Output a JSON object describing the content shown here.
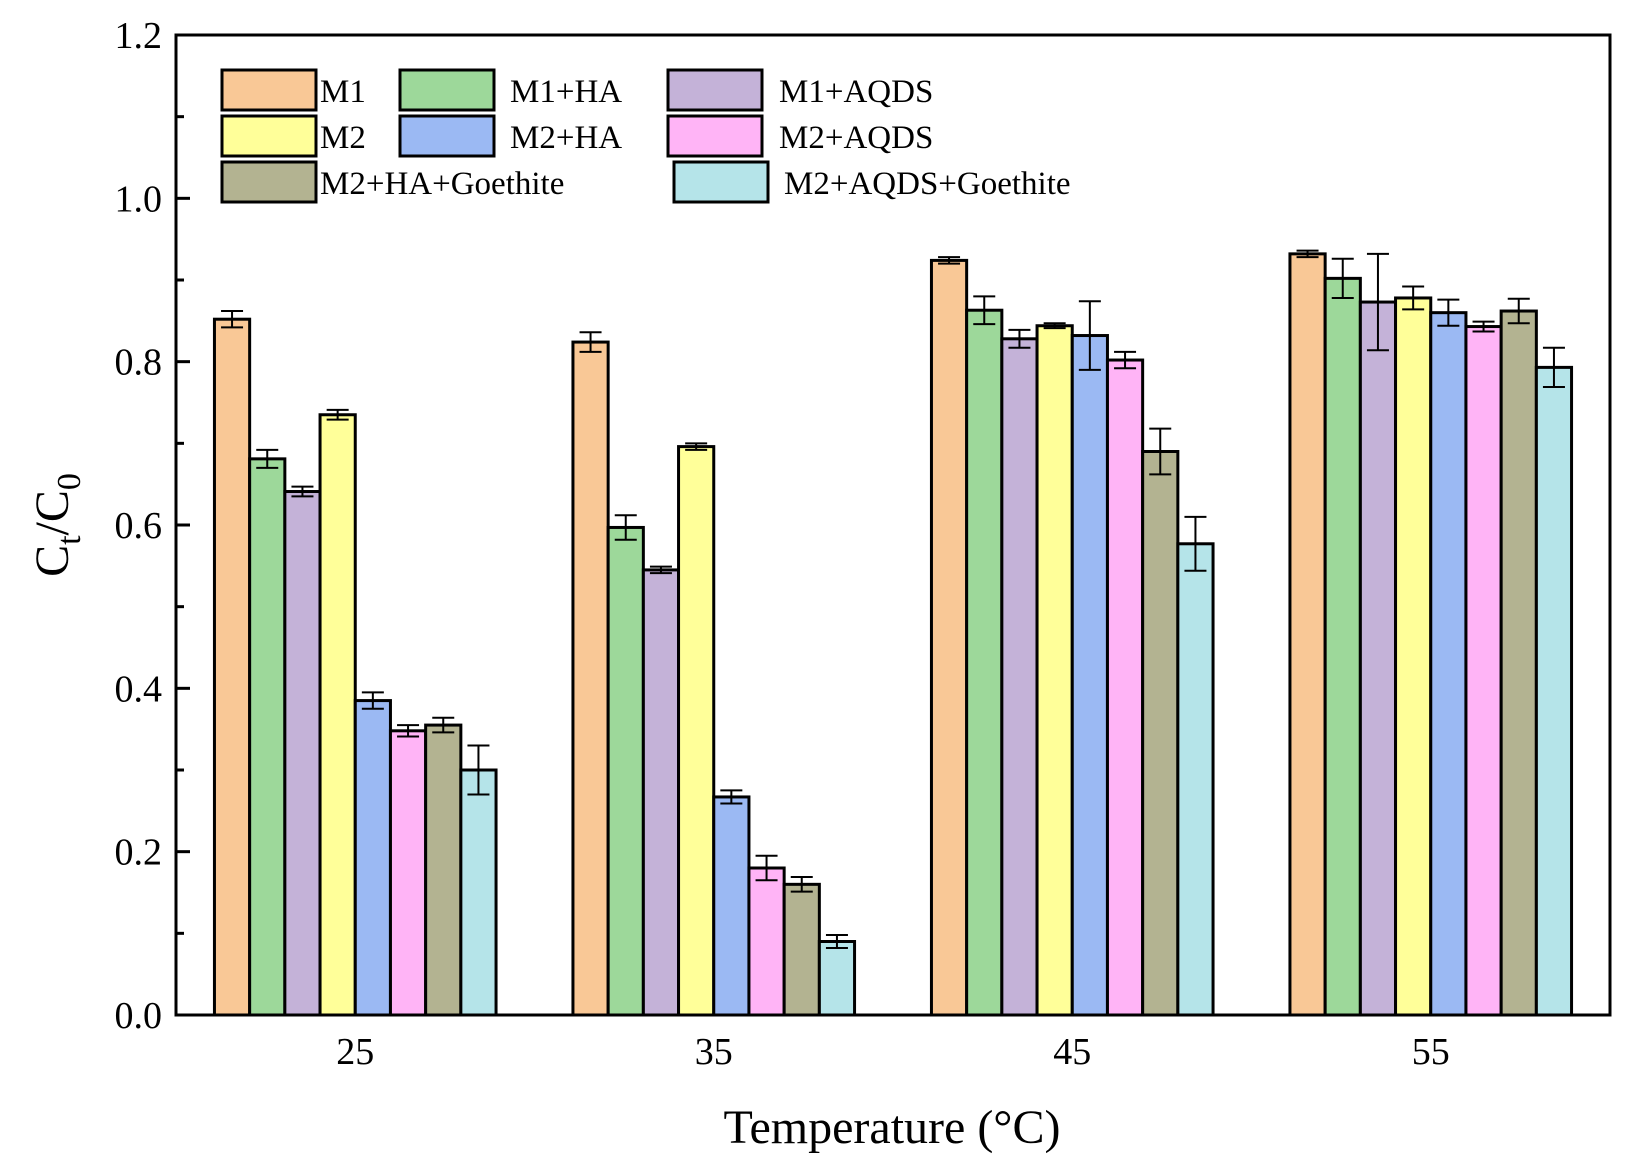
{
  "chart_data": {
    "type": "bar",
    "xlabel": "Temperature (°C)",
    "ylabel_main": "C",
    "ylabel_sub1": "t",
    "ylabel_sep": "/C",
    "ylabel_sub2": "0",
    "ylim": [
      0,
      1.2
    ],
    "yticks": [
      "0.0",
      "0.2",
      "0.4",
      "0.6",
      "0.8",
      "1.0",
      "1.2"
    ],
    "categories": [
      "25",
      "35",
      "45",
      "55"
    ],
    "legend_position": "top-left",
    "series": [
      {
        "name": "M1",
        "color": "#f9c896",
        "values": [
          0.852,
          0.824,
          0.924,
          0.932
        ],
        "errors": [
          0.01,
          0.012,
          0.004,
          0.004
        ]
      },
      {
        "name": "M1+HA",
        "color": "#9dd89a",
        "values": [
          0.681,
          0.597,
          0.863,
          0.902
        ],
        "errors": [
          0.011,
          0.015,
          0.017,
          0.024
        ]
      },
      {
        "name": "M1+AQDS",
        "color": "#c4b2d8",
        "values": [
          0.641,
          0.545,
          0.828,
          0.873
        ],
        "errors": [
          0.006,
          0.004,
          0.011,
          0.059
        ]
      },
      {
        "name": "M2",
        "color": "#ffff99",
        "values": [
          0.735,
          0.696,
          0.844,
          0.878
        ],
        "errors": [
          0.006,
          0.004,
          0.003,
          0.014
        ]
      },
      {
        "name": "M2+HA",
        "color": "#9bb9f3",
        "values": [
          0.385,
          0.267,
          0.832,
          0.86
        ],
        "errors": [
          0.01,
          0.008,
          0.042,
          0.016
        ]
      },
      {
        "name": "M2+AQDS",
        "color": "#ffb4f6",
        "values": [
          0.348,
          0.18,
          0.802,
          0.843
        ],
        "errors": [
          0.007,
          0.015,
          0.01,
          0.006
        ]
      },
      {
        "name": "M2+HA+Goethite",
        "color": "#b3b391",
        "values": [
          0.355,
          0.16,
          0.69,
          0.862
        ],
        "errors": [
          0.009,
          0.009,
          0.028,
          0.015
        ]
      },
      {
        "name": "M2+AQDS+Goethite",
        "color": "#b5e4e9",
        "values": [
          0.3,
          0.09,
          0.577,
          0.793
        ],
        "errors": [
          0.03,
          0.008,
          0.033,
          0.024
        ]
      }
    ]
  }
}
